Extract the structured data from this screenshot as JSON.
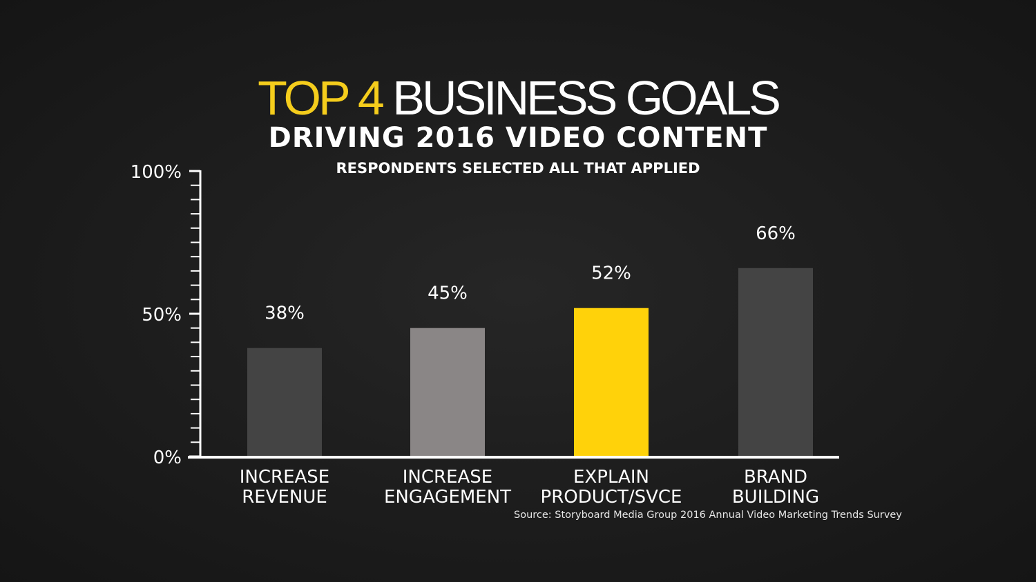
{
  "title": {
    "highlight": "TOP 4",
    "rest": "BUSINESS GOALS",
    "subtitle": "DRIVING 2016 VIDEO CONTENT",
    "note": "RESPONDENTS SELECTED ALL THAT APPLIED"
  },
  "source": "Source: Storyboard Media Group 2016 Annual Video Marketing Trends Survey",
  "colors": {
    "accent": "#f5cd1c",
    "bar_dark": "#444444",
    "bar_gray": "#8a8686",
    "bar_yellow": "#ffd20a",
    "axis": "#ffffff"
  },
  "chart_data": {
    "type": "bar",
    "title": "TOP 4 BUSINESS GOALS",
    "subtitle": "DRIVING 2016 VIDEO CONTENT",
    "categories": [
      [
        "INCREASE",
        "REVENUE"
      ],
      [
        "INCREASE",
        "ENGAGEMENT"
      ],
      [
        "EXPLAIN",
        "PRODUCT/SVCE"
      ],
      [
        "BRAND",
        "BUILDING"
      ]
    ],
    "values": [
      38,
      45,
      52,
      66
    ],
    "data_labels": [
      "38%",
      "45%",
      "52%",
      "66%"
    ],
    "bar_colors": [
      "#444444",
      "#8a8686",
      "#ffd20a",
      "#444444"
    ],
    "ylim": [
      0,
      100
    ],
    "y_ticks": [
      0,
      50,
      100
    ],
    "y_tick_labels": [
      "0%",
      "50%",
      "100%"
    ],
    "minor_tick_step": 5,
    "grid": false,
    "legend": "none"
  }
}
